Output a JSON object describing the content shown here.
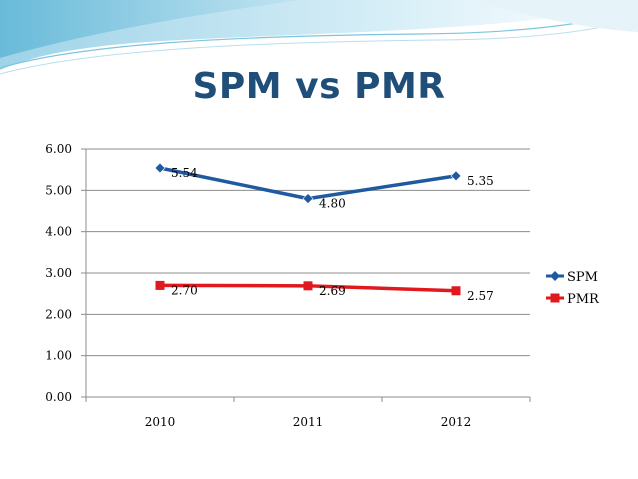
{
  "slide": {
    "title": "SPM vs PMR",
    "colors": {
      "swoosh_light": "#d6eef7",
      "swoosh_mid": "#9fd3e8",
      "swoosh_dark": "#5fb6d6",
      "title": "#1f4e79"
    }
  },
  "chart_data": {
    "type": "line",
    "title": "SPM vs PMR",
    "xlabel": "",
    "ylabel": "",
    "categories": [
      "2010",
      "2011",
      "2012"
    ],
    "ylim": [
      0,
      6
    ],
    "y_ticks": [
      "0.00",
      "1.00",
      "2.00",
      "3.00",
      "4.00",
      "5.00",
      "6.00"
    ],
    "grid": true,
    "legend_position": "right",
    "series": [
      {
        "name": "SPM",
        "values": [
          5.54,
          4.8,
          5.35
        ],
        "labels": [
          "5.54",
          "4.80",
          "5.35"
        ],
        "color": "#1f5aa0",
        "marker": "diamond"
      },
      {
        "name": "PMR",
        "values": [
          2.7,
          2.69,
          2.57
        ],
        "labels": [
          "2.70",
          "2.69",
          "2.57"
        ],
        "color": "#e0191f",
        "marker": "square"
      }
    ]
  }
}
